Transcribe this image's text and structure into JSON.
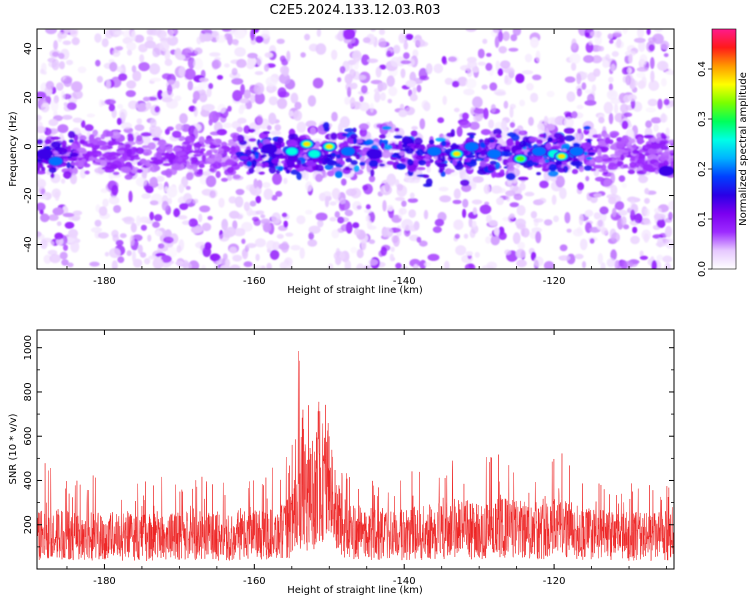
{
  "page": {
    "title": "C2E5.2024.133.12.03.R03"
  },
  "chart_data": [
    {
      "type": "heatmap",
      "xlabel": "Height of straight line (km)",
      "ylabel": "Frequency (Hz)",
      "xlim": [
        -189,
        -104
      ],
      "ylim": [
        -50,
        48
      ],
      "x_ticks": [
        -180,
        -160,
        -140,
        -120
      ],
      "y_ticks": [
        -40,
        -20,
        0,
        20,
        40
      ],
      "colorbar": {
        "label": "Normalized spectral amplitude",
        "range": [
          0.0,
          0.48
        ],
        "ticks": [
          0.0,
          0.1,
          0.2,
          0.3,
          0.4
        ],
        "colors": [
          "#ffffff",
          "#e6c8ff",
          "#9d2bff",
          "#7b00f0",
          "#2a00e6",
          "#0040ff",
          "#00b4ff",
          "#00ffe6",
          "#00ff5a",
          "#7aff00",
          "#ffff00",
          "#ff9900",
          "#ff1a1a",
          "#ff1a8c"
        ]
      },
      "band": {
        "center_hz": -3,
        "half_width_hz": 7,
        "x_range": [
          -162,
          -115
        ]
      },
      "hotspots": [
        {
          "x": -186.5,
          "y": -6,
          "v": 0.2
        },
        {
          "x": -188,
          "y": -3,
          "v": 0.15
        },
        {
          "x": -153,
          "y": 1,
          "v": 0.42
        },
        {
          "x": -150,
          "y": 0,
          "v": 0.38
        },
        {
          "x": -155,
          "y": -2,
          "v": 0.3
        },
        {
          "x": -152,
          "y": -3,
          "v": 0.28
        },
        {
          "x": -147.5,
          "y": -2,
          "v": 0.2
        },
        {
          "x": -158,
          "y": -1,
          "v": 0.15
        },
        {
          "x": -144,
          "y": -3,
          "v": 0.18
        },
        {
          "x": -136,
          "y": -2,
          "v": 0.22
        },
        {
          "x": -133,
          "y": -3,
          "v": 0.42
        },
        {
          "x": -131,
          "y": 0,
          "v": 0.2
        },
        {
          "x": -128,
          "y": -3,
          "v": 0.2
        },
        {
          "x": -124.5,
          "y": -5,
          "v": 0.35
        },
        {
          "x": -122,
          "y": -2,
          "v": 0.22
        },
        {
          "x": -120,
          "y": -3,
          "v": 0.3
        },
        {
          "x": -119,
          "y": -4,
          "v": 0.42
        },
        {
          "x": -117,
          "y": -2,
          "v": 0.2
        },
        {
          "x": -105,
          "y": -10,
          "v": 0.18
        }
      ]
    },
    {
      "type": "line",
      "xlabel": "Height of straight line (km)",
      "ylabel": "SNR (10 * v/v)",
      "xlim": [
        -189,
        -104
      ],
      "ylim": [
        0,
        1080
      ],
      "x_ticks": [
        -180,
        -160,
        -140,
        -120
      ],
      "y_ticks": [
        200,
        400,
        600,
        800,
        1000
      ],
      "series": [
        {
          "color": "#ee2222",
          "x": [
            -189,
            -187,
            -185,
            -183,
            -181,
            -179,
            -177,
            -175,
            -173,
            -171,
            -169,
            -167,
            -165,
            -163,
            -161,
            -159,
            -157,
            -156,
            -155,
            -154,
            -153.5,
            -153,
            -152.5,
            -152,
            -151.5,
            -151,
            -150.5,
            -150,
            -149.5,
            -149,
            -148,
            -147,
            -145,
            -143,
            -141,
            -139,
            -137,
            -135,
            -134,
            -133,
            -132,
            -131,
            -129,
            -127,
            -125,
            -124,
            -122,
            -121,
            -120,
            -119.5,
            -119,
            -118,
            -117,
            -115,
            -113,
            -111,
            -109,
            -107,
            -105,
            -104
          ],
          "base": [
            150,
            160,
            155,
            150,
            145,
            150,
            150,
            140,
            150,
            145,
            150,
            150,
            150,
            145,
            150,
            155,
            160,
            170,
            200,
            300,
            380,
            300,
            330,
            350,
            450,
            420,
            440,
            380,
            300,
            230,
            190,
            170,
            160,
            155,
            150,
            160,
            165,
            175,
            180,
            190,
            185,
            175,
            170,
            185,
            180,
            175,
            170,
            180,
            200,
            220,
            200,
            180,
            165,
            160,
            150,
            145,
            150,
            145,
            150,
            150
          ],
          "peak": [
            470,
            530,
            460,
            390,
            460,
            420,
            400,
            380,
            450,
            390,
            380,
            430,
            400,
            380,
            420,
            430,
            470,
            500,
            620,
            1080,
            720,
            700,
            800,
            850,
            780,
            910,
            700,
            680,
            600,
            530,
            470,
            440,
            430,
            400,
            420,
            460,
            500,
            560,
            570,
            580,
            560,
            520,
            510,
            560,
            540,
            470,
            430,
            500,
            580,
            640,
            540,
            480,
            430,
            400,
            380,
            370,
            400,
            380,
            380,
            370
          ]
        }
      ]
    }
  ]
}
